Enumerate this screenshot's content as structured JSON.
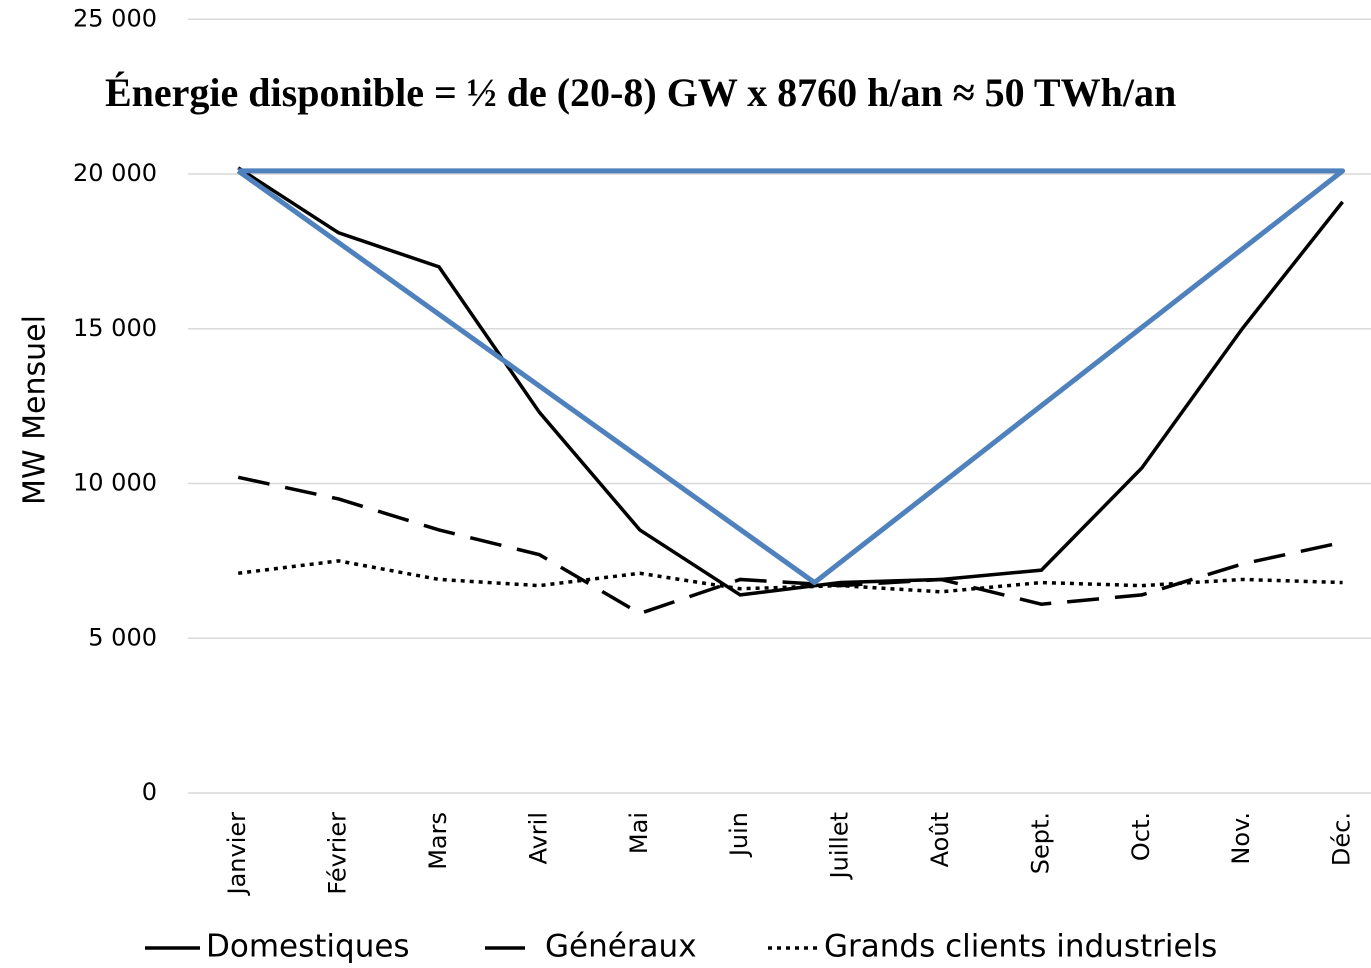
{
  "chart_data": {
    "type": "line",
    "title": "Énergie disponible = ½ de (20-8) GW x 8760 h/an ≈ 50 TWh/an",
    "y_label": "MW Mensuel",
    "categories": [
      "Janvier",
      "Février",
      "Mars",
      "Avril",
      "Mai",
      "Juin",
      "Juillet",
      "Août",
      "Sept.",
      "Oct.",
      "Nov.",
      "Déc."
    ],
    "series": [
      {
        "name": "Domestiques",
        "color": "#000000",
        "style": "solid",
        "values": [
          20200,
          18100,
          17000,
          12300,
          8500,
          6400,
          6800,
          6900,
          7200,
          10500,
          15000,
          19100
        ]
      },
      {
        "name": "Généraux",
        "color": "#000000",
        "style": "dashed",
        "values": [
          10200,
          9500,
          8500,
          7700,
          5800,
          6900,
          6700,
          6900,
          6100,
          6400,
          7400,
          8100
        ]
      },
      {
        "name": "Grands clients industriels",
        "color": "#000000",
        "style": "dotted",
        "values": [
          7100,
          7500,
          6900,
          6700,
          7100,
          6600,
          6700,
          6500,
          6800,
          6700,
          6900,
          6800
        ]
      }
    ],
    "overlay": {
      "color": "#4f81bd",
      "x": [
        0,
        5.74,
        11,
        0
      ],
      "values": [
        20100,
        6800,
        20100,
        20100
      ]
    },
    "ylim": [
      0,
      25000
    ],
    "yticks": [
      {
        "value": 0,
        "label": "0"
      },
      {
        "value": 5000,
        "label": "5 000"
      },
      {
        "value": 10000,
        "label": "10 000"
      },
      {
        "value": 15000,
        "label": "15 000"
      },
      {
        "value": 20000,
        "label": "20 000"
      },
      {
        "value": 25000,
        "label": "25 000"
      }
    ],
    "grid": true
  }
}
